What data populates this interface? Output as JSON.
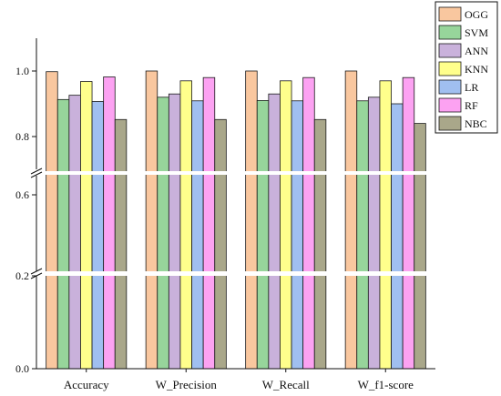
{
  "chart_data": {
    "type": "bar",
    "title": "",
    "xlabel": "",
    "ylabel": "",
    "categories": [
      "Accuracy",
      "W_Precision",
      "W_Recall",
      "W_f1-score"
    ],
    "series": [
      {
        "name": "OGG",
        "color": "#F9C79F",
        "values": [
          0.998,
          1.0,
          1.0,
          1.0
        ]
      },
      {
        "name": "SVM",
        "color": "#97D59B",
        "values": [
          0.913,
          0.92,
          0.91,
          0.909
        ]
      },
      {
        "name": "ANN",
        "color": "#C9B1DB",
        "values": [
          0.926,
          0.93,
          0.93,
          0.92
        ]
      },
      {
        "name": "KNN",
        "color": "#FFFF8C",
        "values": [
          0.968,
          0.97,
          0.97,
          0.97
        ]
      },
      {
        "name": "LR",
        "color": "#A0BFF0",
        "values": [
          0.907,
          0.909,
          0.909,
          0.9
        ]
      },
      {
        "name": "RF",
        "color": "#FCA2F2",
        "values": [
          0.982,
          0.98,
          0.98,
          0.98
        ]
      },
      {
        "name": "NBC",
        "color": "#A9A78A",
        "values": [
          0.852,
          0.852,
          0.852,
          0.84
        ]
      }
    ],
    "y_axis": {
      "ticks": [
        "0.0",
        "0.2",
        "0.6",
        "0.8",
        "1.0"
      ],
      "segments": [
        {
          "range": [
            0.0,
            0.2
          ]
        },
        {
          "range": [
            0.2,
            0.7
          ]
        },
        {
          "range": [
            0.7,
            1.1
          ]
        }
      ]
    },
    "legend_position": "top-right",
    "grid": false
  }
}
